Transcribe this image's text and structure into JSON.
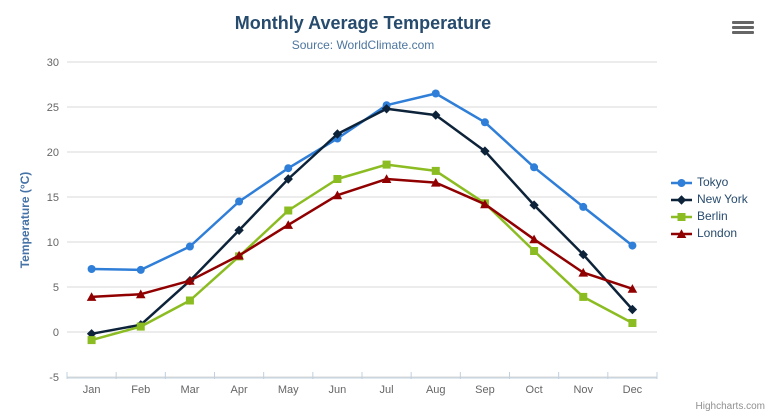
{
  "chart": {
    "credits": "Highcharts.com"
  },
  "export_button": {
    "icon": "hamburger-menu-icon"
  },
  "colors": {
    "grid": "#d8d8d8",
    "axis_line": "#c0d0e0",
    "axis_label": "#666666",
    "title": "#274b6d",
    "subtitle": "#4d759e",
    "y_axis_title": "#4572a7",
    "legend_text": "#274b6d",
    "credits_text": "#909090",
    "burger": "#666666",
    "background": "#ffffff"
  },
  "chart_data": {
    "type": "line",
    "title": "Monthly Average Temperature",
    "subtitle": "Source: WorldClimate.com",
    "xlabel": "",
    "ylabel": "Temperature (°C)",
    "categories": [
      "Jan",
      "Feb",
      "Mar",
      "Apr",
      "May",
      "Jun",
      "Jul",
      "Aug",
      "Sep",
      "Oct",
      "Nov",
      "Dec"
    ],
    "ylim": [
      -5,
      30
    ],
    "yticks": [
      -5,
      0,
      5,
      10,
      15,
      20,
      25,
      30
    ],
    "grid": "horizontal",
    "legend_position": "right",
    "series": [
      {
        "name": "Tokyo",
        "color": "#2f7ed8",
        "marker": "circle",
        "values": [
          7.0,
          6.9,
          9.5,
          14.5,
          18.2,
          21.5,
          25.2,
          26.5,
          23.3,
          18.3,
          13.9,
          9.6
        ]
      },
      {
        "name": "New York",
        "color": "#0d233a",
        "marker": "diamond",
        "values": [
          -0.2,
          0.8,
          5.7,
          11.3,
          17.0,
          22.0,
          24.8,
          24.1,
          20.1,
          14.1,
          8.6,
          2.5
        ]
      },
      {
        "name": "Berlin",
        "color": "#8bbc21",
        "marker": "square",
        "values": [
          -0.9,
          0.6,
          3.5,
          8.4,
          13.5,
          17.0,
          18.6,
          17.9,
          14.3,
          9.0,
          3.9,
          1.0
        ]
      },
      {
        "name": "London",
        "color": "#910000",
        "marker": "triangle",
        "values": [
          3.9,
          4.2,
          5.7,
          8.5,
          11.9,
          15.2,
          17.0,
          16.6,
          14.2,
          10.3,
          6.6,
          4.8
        ]
      }
    ]
  }
}
